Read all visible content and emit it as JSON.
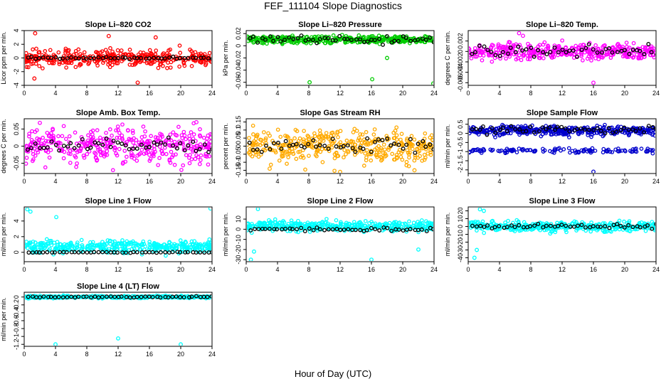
{
  "figure": {
    "title": "FEF_111104  Slope Diagnostics",
    "xlabel": "Hour of Day (UTC)"
  },
  "chart_data": [
    {
      "type": "scatter",
      "title": "Slope Li–820 CO2",
      "ylabel": "Licor ppm per min.",
      "color": "#ff0000",
      "xlim": [
        0,
        24
      ],
      "xticks": [
        0,
        4,
        8,
        12,
        16,
        20,
        24
      ],
      "ylim": [
        -4,
        4
      ],
      "yticks": [
        -4,
        -2,
        0,
        2,
        4
      ],
      "band": {
        "center": 0,
        "spread": 1.2
      },
      "black": {
        "center": 0,
        "spread": 0.15
      },
      "outliers": [
        [
          1.4,
          3.6
        ],
        [
          10.8,
          3.2
        ],
        [
          16.8,
          3.0
        ],
        [
          14.5,
          -3.6
        ],
        [
          1.3,
          -3.0
        ]
      ]
    },
    {
      "type": "scatter",
      "title": "Slope Li–820 Pressure",
      "ylabel": "kPa per min.",
      "color": "#00cc00",
      "xlim": [
        0,
        24
      ],
      "xticks": [
        0,
        4,
        8,
        12,
        16,
        20,
        24
      ],
      "ylim": [
        -0.065,
        0.025
      ],
      "yticks": [
        -0.06,
        -0.04,
        -0.02,
        0,
        0.02
      ],
      "band": {
        "center": 0.01,
        "spread": 0.006
      },
      "black": {
        "center": 0.01,
        "spread": 0.006
      },
      "outliers": [
        [
          8.1,
          -0.06
        ],
        [
          16.1,
          -0.055
        ],
        [
          23.9,
          -0.062
        ],
        [
          18.0,
          -0.02
        ]
      ]
    },
    {
      "type": "scatter",
      "title": "Slope Li–820 Temp.",
      "ylabel": "degrees C per min.",
      "color": "#ff00ff",
      "xlim": [
        0,
        24
      ],
      "xticks": [
        0,
        4,
        8,
        12,
        16,
        20,
        24
      ],
      "ylim": [
        -0.0065,
        0.004
      ],
      "yticks": [
        -0.006,
        -0.004,
        -0.002,
        0,
        0.002
      ],
      "band": {
        "center": 0,
        "spread": 0.0015
      },
      "black": {
        "center": 0,
        "spread": 0.001
      },
      "outliers": [
        [
          16.0,
          -0.006
        ],
        [
          7.0,
          0.003
        ],
        [
          6.5,
          0.0035
        ]
      ]
    },
    {
      "type": "scatter",
      "title": "Slope Amb. Box Temp.",
      "ylabel": "degrees C per min.",
      "color": "#ff00ff",
      "xlim": [
        0,
        24
      ],
      "xticks": [
        0,
        4,
        8,
        12,
        16,
        20,
        24
      ],
      "ylim": [
        -0.08,
        0.08
      ],
      "yticks": [
        -0.05,
        0,
        0.05
      ],
      "band": {
        "center": 0,
        "spread": 0.05
      },
      "black": {
        "center": 0,
        "spread": 0.02
      },
      "outliers": [
        [
          2.0,
          0.068
        ],
        [
          22.0,
          0.07
        ]
      ]
    },
    {
      "type": "scatter",
      "title": "Slope Gas Stream RH",
      "ylabel": "percent per min.",
      "color": "#ffaa00",
      "xlim": [
        0,
        24
      ],
      "xticks": [
        0,
        4,
        8,
        12,
        16,
        20,
        24
      ],
      "ylim": [
        -0.17,
        0.17
      ],
      "yticks": [
        -0.15,
        -0.1,
        -0.05,
        0,
        0.05,
        0.1,
        0.15
      ],
      "band": {
        "center": 0,
        "spread": 0.1
      },
      "black": {
        "center": 0,
        "spread": 0.06
      },
      "outliers": [
        [
          3.0,
          -0.14
        ],
        [
          12.0,
          -0.16
        ],
        [
          21.5,
          -0.15
        ]
      ]
    },
    {
      "type": "scatter",
      "title": "Slope Sample Flow",
      "ylabel": "ml/min per min.",
      "color": "#0000cc",
      "xlim": [
        0,
        24
      ],
      "xticks": [
        0,
        4,
        8,
        12,
        16,
        20,
        24
      ],
      "ylim": [
        -2.2,
        0.8
      ],
      "yticks": [
        -2,
        -1.5,
        -1,
        -0.5,
        0,
        0.5
      ],
      "band": {
        "center": 0.15,
        "spread": 0.25
      },
      "band2": {
        "center": -0.95,
        "spread": 0.12
      },
      "black": {
        "center": 0.2,
        "spread": 0.2
      },
      "outliers": [
        [
          16.0,
          -2.1
        ]
      ]
    },
    {
      "type": "scatter",
      "title": "Slope Line 1 Flow",
      "ylabel": "ml/min per min.",
      "color": "#00ffff",
      "xlim": [
        0,
        24
      ],
      "xticks": [
        0,
        4,
        8,
        12,
        16,
        20,
        24
      ],
      "ylim": [
        -1.2,
        5.8
      ],
      "yticks": [
        0,
        2,
        4
      ],
      "band": {
        "center": 0.7,
        "spread": 0.8
      },
      "black": {
        "center": 0,
        "spread": 0.05
      },
      "outliers": [
        [
          0.4,
          5.5
        ],
        [
          0.8,
          5.2
        ],
        [
          4.1,
          4.5
        ],
        [
          23.8,
          5.6
        ]
      ]
    },
    {
      "type": "scatter",
      "title": "Slope Line 2 Flow",
      "ylabel": "ml/min per min.",
      "color": "#00ffff",
      "xlim": [
        0,
        24
      ],
      "xticks": [
        0,
        4,
        8,
        12,
        16,
        20,
        24
      ],
      "ylim": [
        -32,
        22
      ],
      "yticks": [
        -30,
        -20,
        -10,
        0,
        10
      ],
      "band": {
        "center": 3,
        "spread": 5
      },
      "black": {
        "center": 0,
        "spread": 2
      },
      "outliers": [
        [
          1.5,
          20
        ],
        [
          1.0,
          -22
        ],
        [
          0.6,
          -30
        ],
        [
          16.0,
          -30
        ],
        [
          22.0,
          -20
        ]
      ]
    },
    {
      "type": "scatter",
      "title": "Slope Line 3 Flow",
      "ylabel": "ml/min per min.",
      "color": "#00ffff",
      "xlim": [
        0,
        24
      ],
      "xticks": [
        0,
        4,
        8,
        12,
        16,
        20,
        24
      ],
      "ylim": [
        -45,
        25
      ],
      "yticks": [
        -40,
        -30,
        -20,
        -10,
        0,
        10,
        20
      ],
      "band": {
        "center": 0,
        "spread": 6
      },
      "black": {
        "center": 0,
        "spread": 3
      },
      "outliers": [
        [
          1.5,
          22
        ],
        [
          2.0,
          20
        ],
        [
          0.8,
          -40
        ],
        [
          1.1,
          -30
        ]
      ]
    },
    {
      "type": "scatter",
      "title": "Slope Line 4 (LT) Flow",
      "ylabel": "ml/min per min.",
      "color": "#00ffff",
      "xlim": [
        0,
        24
      ],
      "xticks": [
        0,
        4,
        8,
        12,
        16,
        20,
        24
      ],
      "ylim": [
        -1.25,
        0.12
      ],
      "yticks": [
        -1.2,
        -1,
        -0.8,
        -0.6,
        -0.4,
        -0.2,
        0
      ],
      "band": {
        "center": 0,
        "spread": 0.03
      },
      "black": {
        "center": 0,
        "spread": 0.015
      },
      "outliers": [
        [
          4.0,
          -1.2
        ],
        [
          12.0,
          -1.05
        ],
        [
          20.0,
          -1.2
        ]
      ]
    }
  ]
}
